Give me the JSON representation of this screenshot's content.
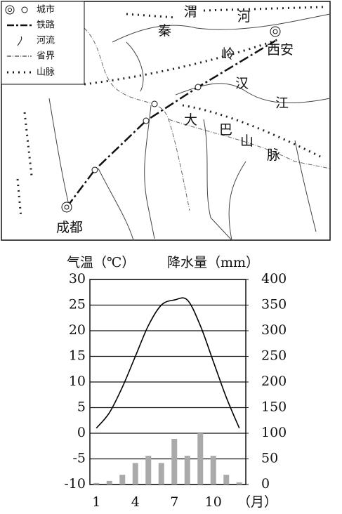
{
  "map": {
    "legend": [
      "城市",
      "铁路",
      "河流",
      "省界",
      "山脉"
    ],
    "labels": [
      "渭",
      "河",
      "秦",
      "岭",
      "西安",
      "汉",
      "江",
      "大",
      "巴",
      "山",
      "脉",
      "成都"
    ]
  },
  "chart_data": {
    "type": "bar-line",
    "y_label": "气温（℃）",
    "y2_label": "降水量（mm）",
    "x_label": "（月）",
    "categories": [
      1,
      null,
      null,
      4,
      null,
      null,
      7,
      null,
      null,
      10,
      null,
      null
    ],
    "series": [
      {
        "type": "bar",
        "axis": "y2",
        "color": "#aaaaaa",
        "values": [
          3,
          7,
          19,
          42,
          56,
          42,
          89,
          56,
          100,
          56,
          19,
          4
        ]
      },
      {
        "type": "line",
        "axis": "y",
        "color": "#000000",
        "values": [
          1,
          4,
          9,
          15,
          21,
          25,
          26,
          26,
          21,
          14,
          7,
          1
        ]
      }
    ],
    "ylim": [
      -10,
      30
    ],
    "yticks": [
      -10,
      -5,
      0,
      5,
      10,
      15,
      20,
      25,
      30
    ],
    "y2lim": [
      0,
      400
    ],
    "y2ticks": [
      0,
      50,
      100,
      150,
      200,
      250,
      300,
      350,
      400
    ],
    "grid": true
  }
}
